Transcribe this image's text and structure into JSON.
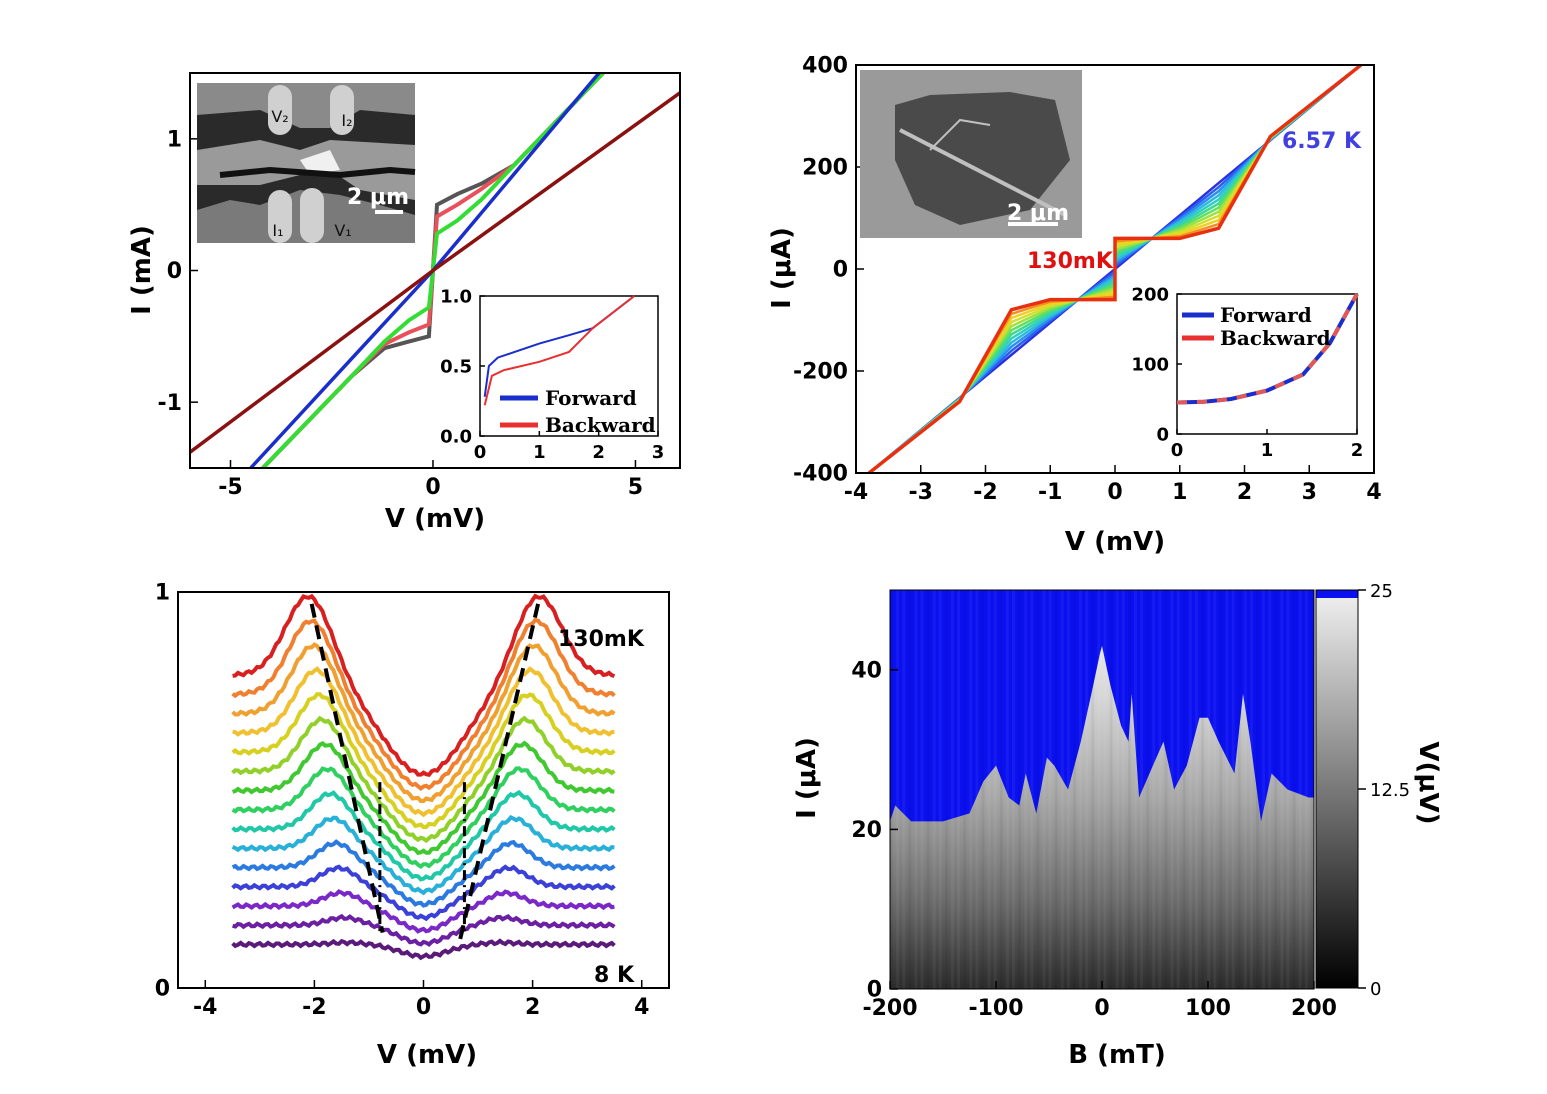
{
  "chart_data": [
    {
      "panel": "top-left",
      "type": "line",
      "xlabel": "V (mV)",
      "ylabel": "I (mA)",
      "xlim": [
        -6,
        6.1
      ],
      "ylim": [
        -1.5,
        1.5
      ],
      "xticks": [
        "-5",
        "0",
        "5"
      ],
      "yticks": [
        "-1",
        "0",
        "1"
      ],
      "series_description_colors": [
        "#555555",
        "#e8505a",
        "#33dd33",
        "#1a2ecc",
        "#8b1010"
      ],
      "series": [
        {
          "color": "#555555",
          "x": [
            -4.2,
            -2.0,
            -1.2,
            -0.6,
            -0.1,
            0.1,
            0.6,
            1.2,
            2.0,
            4.2
          ],
          "y": [
            -1.5,
            -0.8,
            -0.59,
            -0.54,
            -0.5,
            0.5,
            0.58,
            0.66,
            0.8,
            1.5
          ]
        },
        {
          "color": "#e8505a",
          "x": [
            -4.2,
            -2.0,
            -1.2,
            -0.6,
            -0.1,
            0.1,
            0.6,
            1.2,
            2.0,
            4.2
          ],
          "y": [
            -1.5,
            -0.8,
            -0.56,
            -0.47,
            -0.41,
            0.41,
            0.5,
            0.62,
            0.8,
            1.5
          ]
        },
        {
          "color": "#33dd33",
          "x": [
            -4.2,
            -2.0,
            -1.2,
            -0.6,
            -0.1,
            0.1,
            0.6,
            1.2,
            2.0,
            4.2
          ],
          "y": [
            -1.5,
            -0.8,
            -0.54,
            -0.38,
            -0.28,
            0.28,
            0.38,
            0.54,
            0.8,
            1.5
          ]
        },
        {
          "color": "#1a2ecc",
          "x": [
            -4.5,
            0,
            4.1
          ],
          "y": [
            -1.5,
            0,
            1.5
          ]
        },
        {
          "color": "#8b1010",
          "x": [
            -6,
            0,
            6.1
          ],
          "y": [
            -1.38,
            0,
            1.35
          ]
        }
      ],
      "inset_chart": {
        "type": "line",
        "xlim": [
          0,
          3
        ],
        "ylim": [
          0,
          1
        ],
        "xticks": [
          "0",
          "1",
          "2",
          "3"
        ],
        "yticks": [
          "0.0",
          "0.5",
          "1.0"
        ],
        "legend": [
          "Forward",
          "Backward"
        ],
        "series": [
          {
            "name": "Forward",
            "color": "#1a2ecc",
            "x": [
              0.08,
              0.15,
              0.3,
              1.0,
              1.5,
              1.9,
              2.6
            ],
            "y": [
              0.28,
              0.5,
              0.56,
              0.66,
              0.72,
              0.77,
              1.0
            ]
          },
          {
            "name": "Backward",
            "color": "#e83030",
            "x": [
              0.08,
              0.2,
              0.4,
              1.0,
              1.5,
              1.9,
              2.6
            ],
            "y": [
              0.22,
              0.43,
              0.47,
              0.53,
              0.6,
              0.77,
              1.0
            ]
          }
        ]
      },
      "image_inset": {
        "labels": [
          "V₂",
          "I₂",
          "I₁",
          "V₁"
        ],
        "scale_bar": "2 μm"
      }
    },
    {
      "panel": "top-right",
      "type": "line",
      "xlabel": "V (mV)",
      "ylabel": "I (μA)",
      "xlim": [
        -4,
        4
      ],
      "ylim": [
        -400,
        400
      ],
      "xticks": [
        "-4",
        "-3",
        "-2",
        "-1",
        "0",
        "1",
        "2",
        "3",
        "4"
      ],
      "yticks": [
        "-400",
        "-200",
        "0",
        "200",
        "400"
      ],
      "annotations": [
        "130mK",
        "6.57 K"
      ],
      "temperature_series_count": 12,
      "coldest_curve": {
        "x": [
          -3.8,
          -2.4,
          -1.6,
          -1.0,
          0.0,
          0.0,
          1.0,
          1.6,
          2.4,
          3.8
        ],
        "y": [
          -400,
          -260,
          -80,
          -60,
          -60,
          60,
          60,
          80,
          260,
          400
        ]
      },
      "warmest_curve": {
        "x": [
          -3.8,
          0,
          3.8
        ],
        "y": [
          -400,
          0,
          400
        ]
      },
      "inset_chart": {
        "type": "line",
        "xlim": [
          0,
          2
        ],
        "ylim": [
          0,
          200
        ],
        "xticks": [
          "0",
          "1",
          "2"
        ],
        "yticks": [
          "0",
          "100",
          "200"
        ],
        "legend": [
          "Forward",
          "Backward"
        ],
        "series": [
          {
            "name": "Forward",
            "color": "#1a2ecc",
            "x": [
              0,
              0.3,
              0.6,
              1.0,
              1.4,
              1.7,
              2.0
            ],
            "y": [
              45,
              46,
              50,
              62,
              85,
              130,
              200
            ]
          },
          {
            "name": "Backward",
            "color": "#e05858",
            "x": [
              0,
              0.3,
              0.6,
              1.0,
              1.4,
              1.7,
              2.0
            ],
            "y": [
              45,
              46,
              50,
              62,
              85,
              130,
              200
            ]
          }
        ]
      },
      "image_inset": {
        "scale_bar": "2 μm"
      }
    },
    {
      "panel": "bottom-left",
      "type": "line",
      "xlabel": "V (mV)",
      "xlim": [
        -4.5,
        4.5
      ],
      "ylim": [
        0,
        1
      ],
      "xticks": [
        "-4",
        "-2",
        "0",
        "2",
        "4"
      ],
      "yticks": [
        "0",
        "1"
      ],
      "annotations": [
        "130mK",
        "8 K"
      ],
      "curve_count": 15,
      "peak_position_mV": [
        -2.05,
        2.1
      ],
      "curve_colors": [
        "#5a1a7a",
        "#6a20a0",
        "#7a28c8",
        "#3a40d8",
        "#2a7ae0",
        "#28b0d8",
        "#20c8a8",
        "#30d060",
        "#40c830",
        "#90d028",
        "#d8d020",
        "#f0c030",
        "#f0a030",
        "#f08030",
        "#d82020"
      ]
    },
    {
      "panel": "bottom-right",
      "type": "heatmap",
      "xlabel": "B (mT)",
      "ylabel": "I (μA)",
      "xlim": [
        -200,
        200
      ],
      "ylim": [
        0,
        50
      ],
      "xticks": [
        "-200",
        "-100",
        "0",
        "100",
        "200"
      ],
      "yticks": [
        "0",
        "20",
        "40"
      ],
      "colorbar": {
        "label": "V(μV)",
        "ticks": [
          "0",
          "12.5",
          "25"
        ],
        "range": [
          0,
          25
        ],
        "saturation_color": "#0a10f0"
      },
      "critical_current_boundary": {
        "B": [
          -200,
          -195,
          -180,
          -150,
          -125,
          -112,
          -100,
          -88,
          -78,
          -72,
          -62,
          -52,
          -45,
          -32,
          -20,
          -10,
          -2,
          0,
          8,
          18,
          25,
          28,
          35,
          48,
          58,
          68,
          80,
          92,
          100,
          110,
          125,
          133,
          140,
          150,
          160,
          175,
          195
        ],
        "I": [
          21,
          23,
          21,
          21,
          22,
          26,
          28,
          24,
          23,
          27,
          22,
          29,
          28,
          25,
          31,
          37,
          42,
          43,
          38,
          33,
          31,
          37,
          24,
          28,
          31,
          25,
          28,
          34,
          34,
          31,
          27,
          37,
          31,
          21,
          27,
          25,
          24
        ]
      }
    }
  ]
}
